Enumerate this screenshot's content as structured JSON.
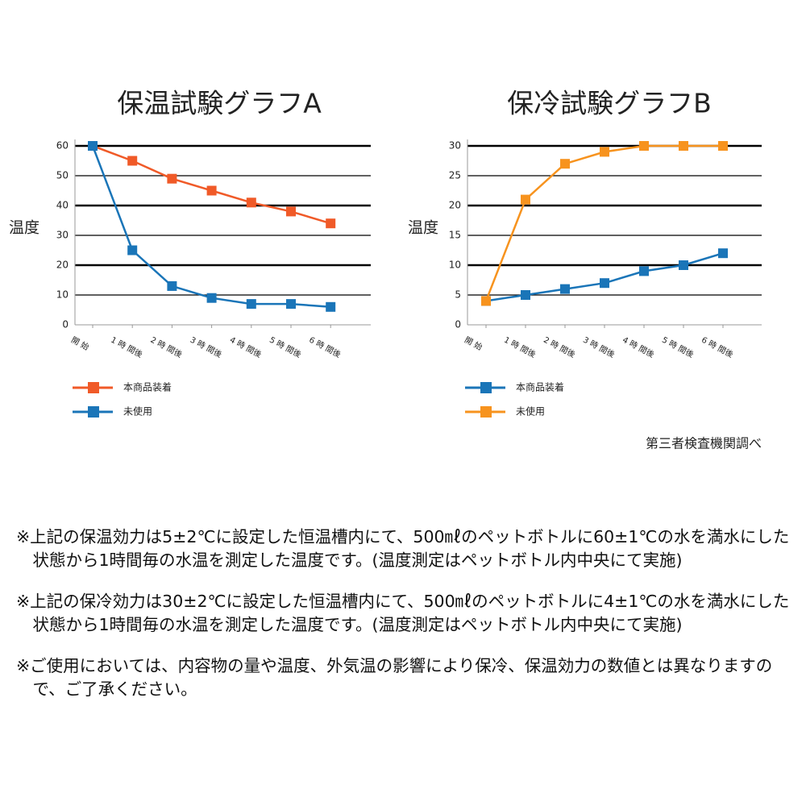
{
  "chart_data": [
    {
      "type": "line",
      "title": "保温試験グラフA",
      "y_label": "温度",
      "categories": [
        "開 始",
        "1 時 間後",
        "2 時 間後",
        "3 時 間後",
        "4 時 間後",
        "5 時 間後",
        "6 時 間後"
      ],
      "series": [
        {
          "name": "本商品装着",
          "color": "#f05a28",
          "values": [
            60,
            55,
            49,
            45,
            41,
            38,
            34
          ]
        },
        {
          "name": "未使用",
          "color": "#1a75b8",
          "values": [
            60,
            25,
            13,
            9,
            7,
            7,
            6
          ]
        }
      ],
      "ylim": [
        0,
        60
      ],
      "yticks": [
        0,
        10,
        20,
        30,
        40,
        50,
        60
      ],
      "grid": true
    },
    {
      "type": "line",
      "title": "保冷試験グラフB",
      "y_label": "温度",
      "categories": [
        "開 始",
        "1 時 間後",
        "2 時 間後",
        "3 時 間後",
        "4 時 間後",
        "5 時 間後",
        "6 時 間後"
      ],
      "series": [
        {
          "name": "本商品装着",
          "color": "#1a75b8",
          "values": [
            4,
            5,
            6,
            7,
            9,
            10,
            12
          ]
        },
        {
          "name": "未使用",
          "color": "#f7931e",
          "values": [
            4,
            21,
            27,
            29,
            30,
            30,
            30
          ]
        }
      ],
      "ylim": [
        0,
        30
      ],
      "yticks": [
        0,
        5,
        10,
        15,
        20,
        25,
        30
      ],
      "grid": true
    }
  ],
  "source": "第三者検査機関調べ",
  "notes": [
    "※上記の保温効力は5±2℃に設定した恒温槽内にて、500㎖のペットボトルに60±1℃の水を満水にした状態から1時間毎の水温を測定した温度です。(温度測定はペットボトル内中央にて実施)",
    "※上記の保冷効力は30±2℃に設定した恒温槽内にて、500㎖のペットボトルに4±1℃の水を満水にした状態から1時間毎の水温を測定した温度です。(温度測定はペットボトル内中央にて実施)",
    "※ご使用においては、内容物の量や温度、外気温の影響により保冷、保温効力の数値とは異なりますので、ご了承ください。"
  ]
}
